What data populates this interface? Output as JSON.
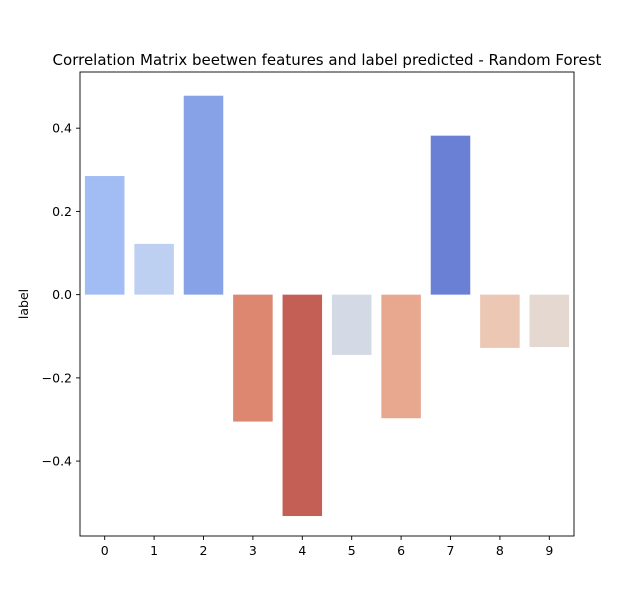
{
  "chart_data": {
    "type": "bar",
    "title": "Correlation Matrix beetwen features and label predicted - Random Forest",
    "xlabel": "",
    "ylabel": "label",
    "categories": [
      "0",
      "1",
      "2",
      "3",
      "4",
      "5",
      "6",
      "7",
      "8",
      "9"
    ],
    "values": [
      0.285,
      0.122,
      0.478,
      -0.305,
      -0.532,
      -0.145,
      -0.297,
      0.382,
      -0.128,
      -0.126
    ],
    "colors": [
      "#a2bdf3",
      "#bdd0f2",
      "#87a2e6",
      "#dd8670",
      "#c45f55",
      "#d3dae6",
      "#e8a890",
      "#6a80d5",
      "#ecc7b3",
      "#e4d8d0"
    ],
    "ylim": [
      -0.58,
      0.535
    ],
    "yticks": [
      -0.4,
      -0.2,
      0.0,
      0.2,
      0.4
    ],
    "ytick_labels": [
      "−0.4",
      "−0.2",
      "0.0",
      "0.2",
      "0.4"
    ],
    "grid": false,
    "legend": null
  }
}
